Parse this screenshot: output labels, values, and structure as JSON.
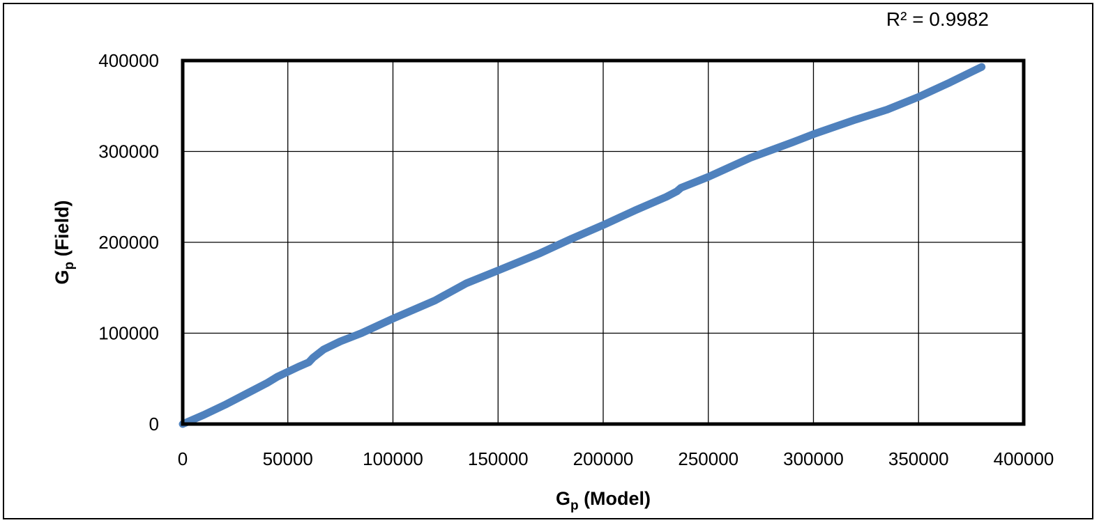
{
  "chart_data": {
    "type": "line",
    "title": "",
    "xlabel": "G",
    "xlabel_sub": "p",
    "xlabel_suffix": " (Model)",
    "ylabel": "G",
    "ylabel_sub": "p",
    "ylabel_suffix": " (Field)",
    "xlim": [
      0,
      400000
    ],
    "ylim": [
      0,
      400000
    ],
    "xticks": [
      0,
      50000,
      100000,
      150000,
      200000,
      250000,
      300000,
      350000,
      400000
    ],
    "yticks": [
      0,
      100000,
      200000,
      300000,
      400000
    ],
    "grid": true,
    "annotation": "R² = 0.9982",
    "series_color": "#4F81BD",
    "series": [
      {
        "x": [
          0,
          10000,
          20000,
          30000,
          40000,
          45000,
          55000,
          60000,
          62000,
          67000,
          75000,
          85000,
          100000,
          120000,
          135000,
          150000,
          170000,
          185000,
          200000,
          215000,
          230000,
          235000,
          237000,
          250000,
          270000,
          290000,
          300000,
          320000,
          335000,
          350000,
          365000,
          380000
        ],
        "y": [
          0,
          10000,
          21000,
          33000,
          45000,
          52000,
          63000,
          68000,
          73000,
          82000,
          91000,
          100000,
          116000,
          136000,
          155000,
          169000,
          188000,
          204000,
          219000,
          235000,
          250000,
          256000,
          260000,
          272000,
          293000,
          310000,
          319000,
          335000,
          346000,
          360000,
          376000,
          393000
        ]
      }
    ]
  }
}
